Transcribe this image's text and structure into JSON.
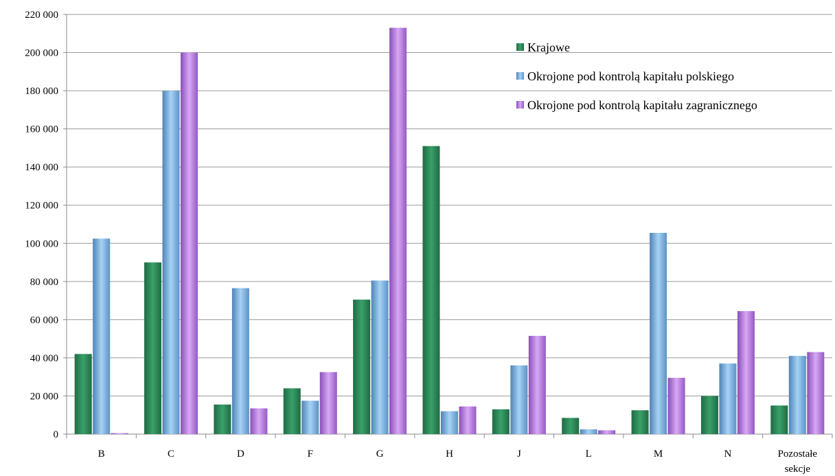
{
  "chart_data": {
    "type": "bar",
    "title": "",
    "xlabel": "",
    "ylabel": "",
    "categories": [
      "B",
      "C",
      "D",
      "F",
      "G",
      "H",
      "J",
      "L",
      "M",
      "N",
      [
        "Pozostałe",
        "sekcje"
      ]
    ],
    "ylim": [
      0,
      220000
    ],
    "yticks": [
      "0",
      "20 000",
      "40 000",
      "60 000",
      "80 000",
      "100 000",
      "120 000",
      "140 000",
      "160 000",
      "180 000",
      "200 000",
      "220 000"
    ],
    "ytick_step": 20000,
    "grid": true,
    "legend_position": "top-right",
    "series": [
      {
        "name": "Krajowe",
        "color": "#2e8b57",
        "values": [
          42000,
          90000,
          15500,
          24000,
          70500,
          151000,
          13000,
          8500,
          12500,
          20000,
          15000
        ]
      },
      {
        "name": "Okrojone pod kontrolą kapitału polskiego",
        "color": "#7fb4e0",
        "values": [
          102500,
          180000,
          76500,
          17500,
          80500,
          12000,
          36000,
          2500,
          105500,
          37000,
          41000
        ]
      },
      {
        "name": "Okrojone pod kontrolą kapitału zagranicznego",
        "color": "#b57be0",
        "values": [
          500,
          200000,
          13500,
          32500,
          213000,
          14500,
          51500,
          2000,
          29500,
          64500,
          43000
        ]
      }
    ]
  }
}
